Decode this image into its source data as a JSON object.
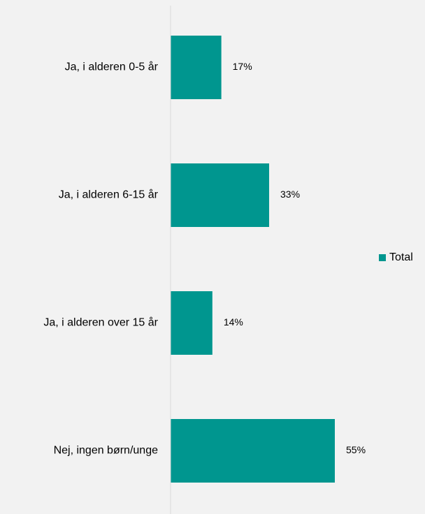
{
  "chart_data": {
    "type": "barh",
    "categories": [
      "Ja, i alderen 0-5 år",
      "Ja, i alderen 6-15 år",
      "Ja, i alderen over 15 år",
      "Nej, ingen børn/unge"
    ],
    "series": [
      {
        "name": "Total",
        "color": "#00968f",
        "values": [
          17,
          33,
          14,
          55
        ],
        "value_labels": [
          "17%",
          "33%",
          "14%",
          "55%"
        ]
      }
    ],
    "legend": "right"
  }
}
